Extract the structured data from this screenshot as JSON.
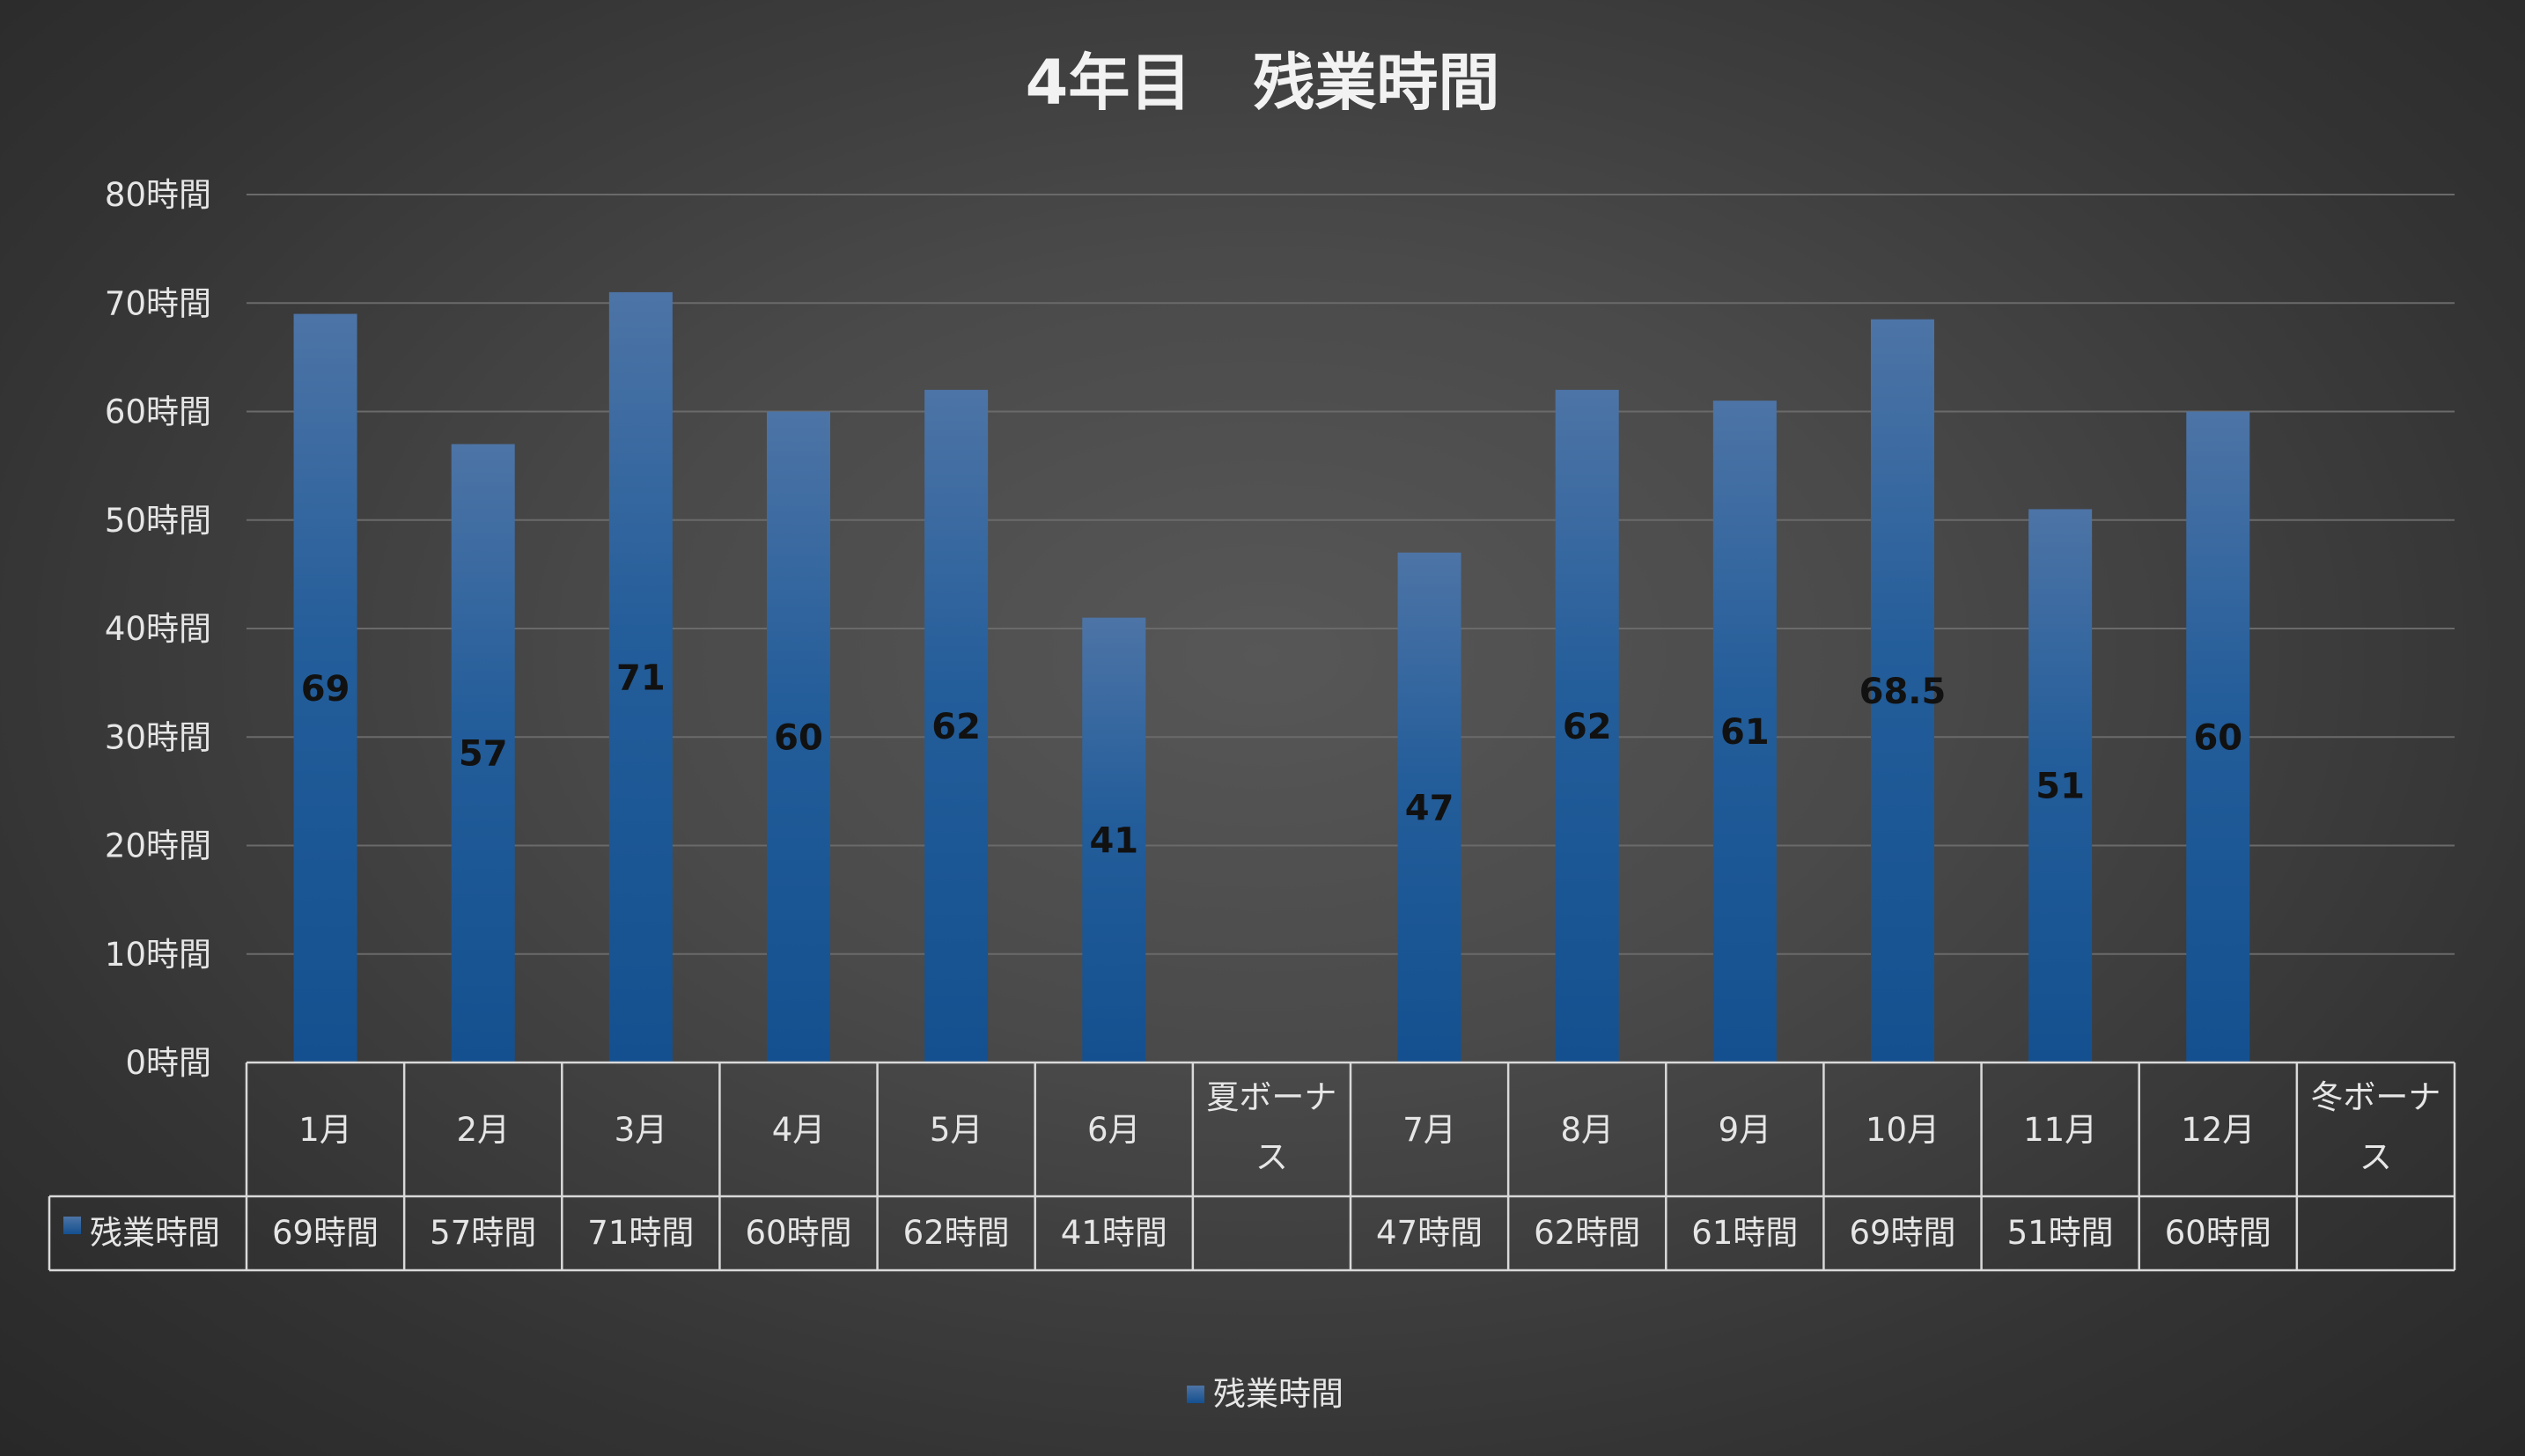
{
  "chart_data": {
    "type": "bar",
    "title": "4年目　残業時間",
    "categories": [
      [
        "1月"
      ],
      [
        "2月"
      ],
      [
        "3月"
      ],
      [
        "4月"
      ],
      [
        "5月"
      ],
      [
        "6月"
      ],
      [
        "夏ボーナ",
        "ス"
      ],
      [
        "7月"
      ],
      [
        "8月"
      ],
      [
        "9月"
      ],
      [
        "10月"
      ],
      [
        "11月"
      ],
      [
        "12月"
      ],
      [
        "冬ボーナ",
        "ス"
      ]
    ],
    "series": [
      {
        "name": "残業時間",
        "values": [
          69,
          57,
          71,
          60,
          62,
          41,
          null,
          47,
          62,
          61,
          68.5,
          51,
          60,
          null
        ],
        "data_labels": [
          "69",
          "57",
          "71",
          "60",
          "62",
          "41",
          "",
          "47",
          "62",
          "61",
          "68.5",
          "51",
          "60",
          ""
        ],
        "table_values": [
          "69時間",
          "57時間",
          "71時間",
          "60時間",
          "62時間",
          "41時間",
          "",
          "47時間",
          "62時間",
          "61時間",
          "69時間",
          "51時間",
          "60時間",
          ""
        ],
        "color": "#1f5a96"
      }
    ],
    "ylim": [
      0,
      80
    ],
    "yticks": [
      0,
      10,
      20,
      30,
      40,
      50,
      60,
      70,
      80
    ],
    "ytick_labels": [
      "0時間",
      "10時間",
      "20時間",
      "30時間",
      "40時間",
      "50時間",
      "60時間",
      "70時間",
      "80時間"
    ],
    "xlabel": "",
    "ylabel": "",
    "grid": true,
    "data_table": true,
    "legend": {
      "position": "bottom",
      "label": "残業時間"
    }
  }
}
